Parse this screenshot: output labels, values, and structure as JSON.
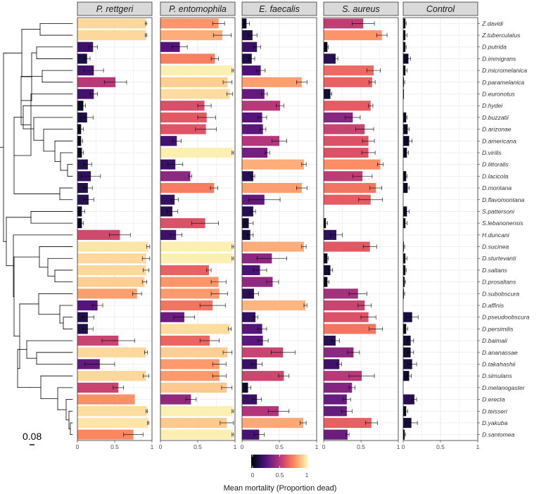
{
  "chart_data": {
    "type": "bar",
    "orientation": "horizontal",
    "facets": [
      "P. rettgeri",
      "P. entomophila",
      "E. faecalis",
      "S. aureus",
      "Control"
    ],
    "species": [
      "Z.davidi",
      "Z.tuberculatus",
      "D.putrida",
      "D.immigrans",
      "D.micromelanica",
      "D.paramelanica",
      "D.euronotus",
      "D.hydei",
      "D.buzzatii",
      "D.arizonae",
      "D.americana",
      "D.virilis",
      "D.littoralis",
      "D.lacicola",
      "D.montana",
      "D.flavomontana",
      "S.pattersoni",
      "S.lebanonensis",
      "H.duncani",
      "D.sucinea",
      "D.sturtevanti",
      "D.saltans",
      "D.prosaltans",
      "D.subobscura",
      "D.affinis",
      "D.pseudoobscura",
      "D.persimilis",
      "D.baimaii",
      "D.ananassae",
      "D.takahashii",
      "D.simulans",
      "D.melanogaster",
      "D.erecta",
      "D.teisseri",
      "D.yakuba",
      "D.santomea"
    ],
    "values": [
      [
        0.92,
        0.78,
        0.06,
        0.53,
        0.03
      ],
      [
        0.92,
        0.83,
        0.14,
        0.78,
        0.03
      ],
      [
        0.21,
        0.26,
        0.2,
        0.05,
        0.03
      ],
      [
        0.13,
        0.73,
        0.13,
        0.16,
        0.07
      ],
      [
        0.22,
        0.97,
        0.25,
        0.67,
        0.03
      ],
      [
        0.51,
        0.9,
        0.8,
        0.65,
        0.01
      ],
      [
        0.22,
        0.93,
        0.3,
        0.09,
        0.01
      ],
      [
        0.08,
        0.59,
        0.51,
        0.63,
        0.0
      ],
      [
        0.13,
        0.62,
        0.27,
        0.39,
        0.04
      ],
      [
        0.05,
        0.61,
        0.28,
        0.55,
        0.06
      ],
      [
        0.05,
        0.22,
        0.5,
        0.6,
        0.08
      ],
      [
        0.06,
        0.97,
        0.34,
        0.6,
        0.05
      ],
      [
        0.14,
        0.2,
        0.83,
        0.76,
        0.0
      ],
      [
        0.18,
        0.4,
        0.15,
        0.52,
        0.04
      ],
      [
        0.14,
        0.72,
        0.8,
        0.7,
        0.06
      ],
      [
        0.15,
        0.19,
        0.3,
        0.63,
        0.0
      ],
      [
        0.06,
        0.16,
        0.15,
        0.0,
        0.05
      ],
      [
        0.06,
        0.6,
        0.09,
        0.03,
        0.03
      ],
      [
        0.57,
        0.21,
        0.11,
        0.17,
        0.0
      ],
      [
        0.95,
        0.97,
        0.83,
        0.62,
        0.01
      ],
      [
        0.92,
        0.97,
        0.4,
        0.05,
        0.03
      ],
      [
        0.92,
        0.65,
        0.24,
        0.09,
        0.03
      ],
      [
        0.9,
        0.78,
        0.41,
        0.05,
        0.02
      ],
      [
        0.8,
        0.79,
        0.16,
        0.46,
        0.01
      ],
      [
        0.27,
        0.7,
        0.85,
        0.55,
        0.0
      ],
      [
        0.14,
        0.32,
        0.18,
        0.6,
        0.12
      ],
      [
        0.14,
        0.93,
        0.27,
        0.7,
        0.04
      ],
      [
        0.55,
        0.66,
        0.28,
        0.16,
        0.1
      ],
      [
        0.92,
        0.9,
        0.55,
        0.4,
        0.1
      ],
      [
        0.3,
        0.79,
        0.2,
        0.21,
        0.12
      ],
      [
        0.92,
        0.79,
        0.56,
        0.51,
        0.08
      ],
      [
        0.55,
        0.89,
        0.08,
        0.38,
        0.0
      ],
      [
        0.77,
        0.41,
        0.2,
        0.31,
        0.15
      ],
      [
        0.93,
        0.97,
        0.49,
        0.31,
        0.04
      ],
      [
        0.95,
        0.89,
        0.82,
        0.64,
        0.11
      ],
      [
        0.75,
        0.97,
        0.23,
        0.32,
        0.02
      ]
    ],
    "errors": [
      [
        0.01,
        0.08,
        0.04,
        0.15,
        0.01
      ],
      [
        0.01,
        0.12,
        0.06,
        0.07,
        0.02
      ],
      [
        0.06,
        0.1,
        0.05,
        0.01,
        0.01
      ],
      [
        0.04,
        0.05,
        0.04,
        0.03,
        0.03
      ],
      [
        0.13,
        0.01,
        0.06,
        0.09,
        0.02
      ],
      [
        0.15,
        0.06,
        0.07,
        0.04,
        0.01
      ],
      [
        0.05,
        0.04,
        0.04,
        0.02,
        0.0
      ],
      [
        0.03,
        0.09,
        0.05,
        0.03,
        0.0
      ],
      [
        0.08,
        0.12,
        0.06,
        0.1,
        0.01
      ],
      [
        0.03,
        0.14,
        0.04,
        0.12,
        0.02
      ],
      [
        0.02,
        0.06,
        0.1,
        0.08,
        0.04
      ],
      [
        0.02,
        0.01,
        0.03,
        0.09,
        0.02
      ],
      [
        0.05,
        0.1,
        0.03,
        0.04,
        0.0
      ],
      [
        0.13,
        0.02,
        0.02,
        0.13,
        0.01
      ],
      [
        0.06,
        0.05,
        0.07,
        0.08,
        0.02
      ],
      [
        0.07,
        0.05,
        0.21,
        0.16,
        0.0
      ],
      [
        0.04,
        0.07,
        0.03,
        0.0,
        0.03
      ],
      [
        0.02,
        0.18,
        0.06,
        0.02,
        0.02
      ],
      [
        0.14,
        0.08,
        0.04,
        0.08,
        0.0
      ],
      [
        0.02,
        0.01,
        0.03,
        0.09,
        0.01
      ],
      [
        0.05,
        0.01,
        0.2,
        0.01,
        0.02
      ],
      [
        0.04,
        0.03,
        0.09,
        0.03,
        0.01
      ],
      [
        0.03,
        0.1,
        0.08,
        0.02,
        0.01
      ],
      [
        0.06,
        0.11,
        0.06,
        0.12,
        0.01
      ],
      [
        0.07,
        0.17,
        0.02,
        0.09,
        0.0
      ],
      [
        0.08,
        0.14,
        0.03,
        0.1,
        0.08
      ],
      [
        0.07,
        0.02,
        0.06,
        0.09,
        0.02
      ],
      [
        0.22,
        0.13,
        0.07,
        0.05,
        0.04
      ],
      [
        0.02,
        0.06,
        0.16,
        0.08,
        0.04
      ],
      [
        0.2,
        0.09,
        0.07,
        0.03,
        0.06
      ],
      [
        0.04,
        0.09,
        0.07,
        0.17,
        0.03
      ],
      [
        0.07,
        0.07,
        0.04,
        0.04,
        0.0
      ],
      [
        0.0,
        0.07,
        0.06,
        0.05,
        0.03
      ],
      [
        0.01,
        0.01,
        0.14,
        0.07,
        0.02
      ],
      [
        0.01,
        0.09,
        0.04,
        0.08,
        0.08
      ],
      [
        0.13,
        0.01,
        0.07,
        0.02,
        0.01
      ]
    ],
    "xlim": [
      0,
      1
    ],
    "xticks": [
      "0",
      "0.5",
      "1"
    ],
    "legend_title": "Mean mortality (Proportion dead)",
    "legend_ticks": [
      "0",
      "0.5",
      "1"
    ],
    "legend_position": "bottom",
    "colormap": "magma",
    "grid": true
  },
  "tree": {
    "scale_label": "0.08"
  },
  "colors": {
    "strip_fill": "#d9d9d9",
    "strip_border": "#333333",
    "panel_border": "#333333",
    "grid": "#ebebeb",
    "error_bar": "#000000",
    "tree_line": "#000000"
  }
}
